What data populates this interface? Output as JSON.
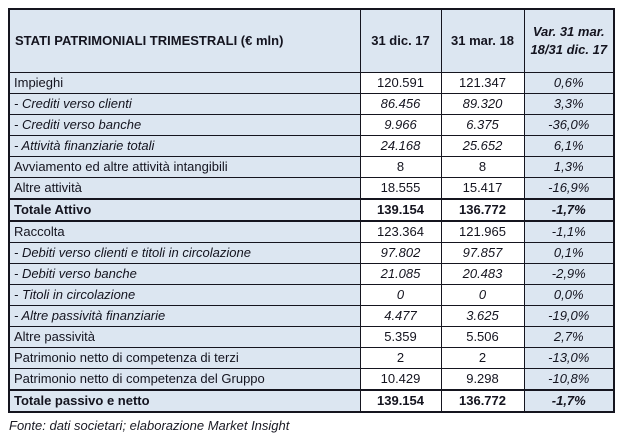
{
  "table": {
    "title": "STATI PATRIMONIALI TRIMESTRALI (€ mln)",
    "col_headers": [
      "31 dic. 17",
      "31 mar. 18",
      "Var. 31 mar. 18/31 dic. 17"
    ],
    "rows": [
      {
        "label": "Impieghi",
        "v1": "120.591",
        "v2": "121.347",
        "var": "0,6%",
        "style": "normal"
      },
      {
        "label": "- Crediti verso clienti",
        "v1": "86.456",
        "v2": "89.320",
        "var": "3,3%",
        "style": "sub"
      },
      {
        "label": "- Crediti verso banche",
        "v1": "9.966",
        "v2": "6.375",
        "var": "-36,0%",
        "style": "sub"
      },
      {
        "label": "- Attività finanziarie totali",
        "v1": "24.168",
        "v2": "25.652",
        "var": "6,1%",
        "style": "sub"
      },
      {
        "label": "Avviamento ed altre attività intangibili",
        "v1": "8",
        "v2": "8",
        "var": "1,3%",
        "style": "normal"
      },
      {
        "label": "Altre attività",
        "v1": "18.555",
        "v2": "15.417",
        "var": "-16,9%",
        "style": "normal"
      },
      {
        "label": "Totale Attivo",
        "v1": "139.154",
        "v2": "136.772",
        "var": "-1,7%",
        "style": "total"
      },
      {
        "label": "Raccolta",
        "v1": "123.364",
        "v2": "121.965",
        "var": "-1,1%",
        "style": "normal"
      },
      {
        "label": "- Debiti verso clienti e titoli in circolazione",
        "v1": "97.802",
        "v2": "97.857",
        "var": "0,1%",
        "style": "sub"
      },
      {
        "label": "- Debiti verso banche",
        "v1": "21.085",
        "v2": "20.483",
        "var": "-2,9%",
        "style": "sub"
      },
      {
        "label": "- Titoli in circolazione",
        "v1": "0",
        "v2": "0",
        "var": "0,0%",
        "style": "sub"
      },
      {
        "label": "- Altre passività finanziarie",
        "v1": "4.477",
        "v2": "3.625",
        "var": "-19,0%",
        "style": "sub"
      },
      {
        "label": "Altre passività",
        "v1": "5.359",
        "v2": "5.506",
        "var": "2,7%",
        "style": "normal"
      },
      {
        "label": "Patrimonio netto di competenza di terzi",
        "v1": "2",
        "v2": "2",
        "var": "-13,0%",
        "style": "normal"
      },
      {
        "label": "Patrimonio netto di competenza del Gruppo",
        "v1": "10.429",
        "v2": "9.298",
        "var": "-10,8%",
        "style": "normal"
      },
      {
        "label": "Totale passivo e netto",
        "v1": "139.154",
        "v2": "136.772",
        "var": "-1,7%",
        "style": "total"
      }
    ]
  },
  "footer": {
    "source_note": "Fonte: dati societari; elaborazione Market Insight"
  },
  "colors": {
    "header_bg": "#dce6f1",
    "row_bg": "#dce6f1",
    "value_bg": "#ffffff",
    "border": "#15151f",
    "text": "#14141f"
  }
}
